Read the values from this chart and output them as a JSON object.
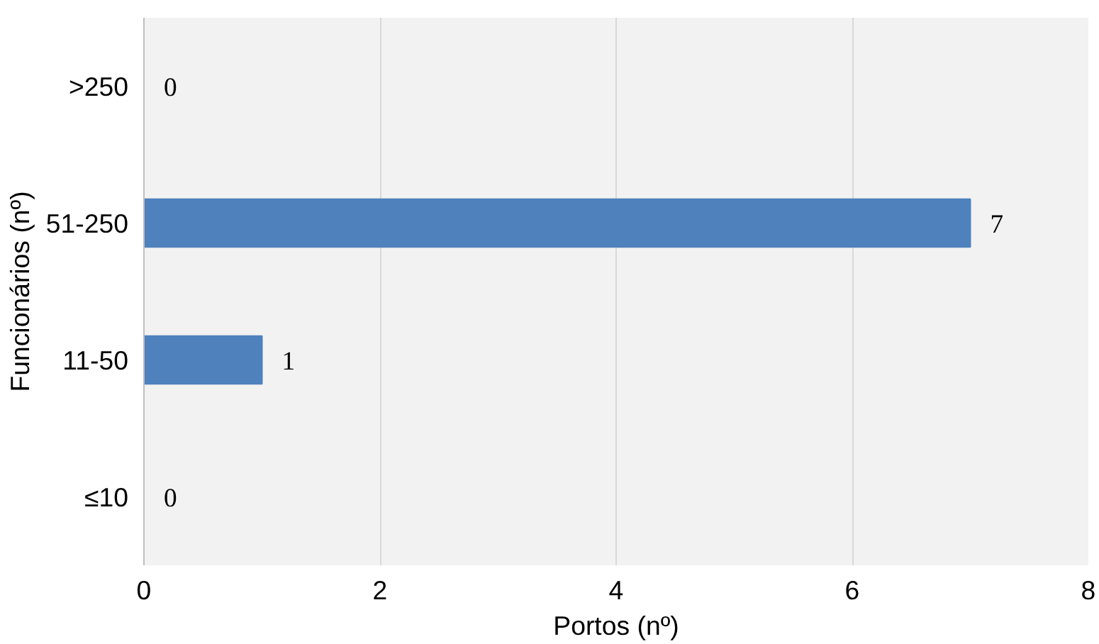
{
  "chart_data": {
    "type": "bar",
    "orientation": "horizontal",
    "xlabel": "Portos (nº)",
    "ylabel": "Funcionários (nº)",
    "categories": [
      ">250",
      "51-250",
      "11-50",
      "≤10"
    ],
    "values": [
      0,
      7,
      1,
      0
    ],
    "color": "#4f81bd",
    "xlim": [
      0,
      8
    ],
    "xticks": [
      0,
      2,
      4,
      6,
      8
    ],
    "grid": "x",
    "data_labels": true
  }
}
